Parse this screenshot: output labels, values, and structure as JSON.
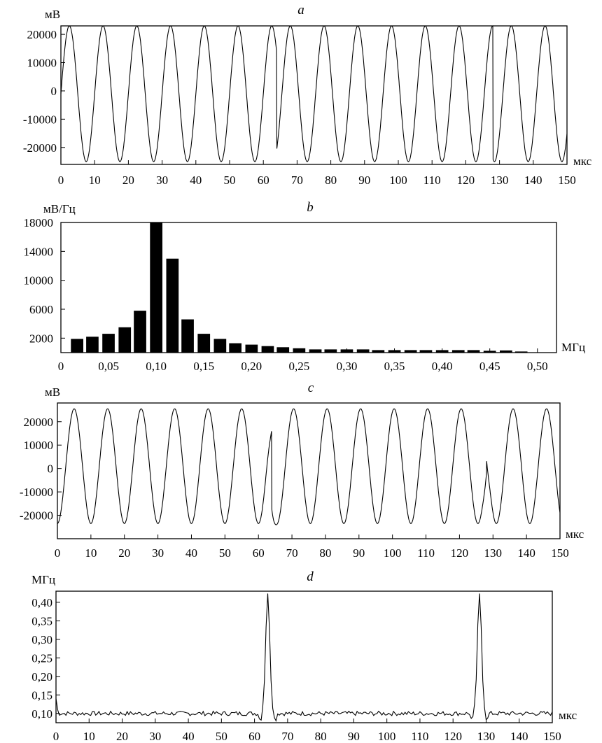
{
  "chart_data": [
    {
      "panel": "a",
      "type": "line",
      "ylabel": "мВ",
      "xlabel": "мкс",
      "xlim": [
        0,
        150
      ],
      "ylim": [
        -26000,
        23000
      ],
      "xticks": [
        0,
        10,
        20,
        30,
        40,
        50,
        60,
        70,
        80,
        90,
        100,
        110,
        120,
        130,
        140,
        150
      ],
      "yticks": [
        -20000,
        -10000,
        0,
        10000,
        20000
      ],
      "xtick_labels": [
        "0",
        "10",
        "20",
        "30",
        "40",
        "50",
        "60",
        "70",
        "80",
        "90",
        "100",
        "110",
        "120",
        "130",
        "140",
        "150"
      ],
      "ytick_labels": [
        "-20000",
        "-10000",
        "0",
        "10000",
        "20000"
      ],
      "grid": false,
      "signal": {
        "amplitude": 24000,
        "period": 10,
        "phase_jumps_at": [
          64,
          128
        ]
      }
    },
    {
      "panel": "b",
      "type": "bar",
      "ylabel": "мВ/Гц",
      "xlabel": "МГц",
      "xlim": [
        0,
        0.52
      ],
      "ylim": [
        0,
        18000
      ],
      "xticks": [
        0,
        0.05,
        0.1,
        0.15,
        0.2,
        0.25,
        0.3,
        0.35,
        0.4,
        0.45,
        0.5
      ],
      "xtick_labels": [
        "0",
        "0,05",
        "0,10",
        "0,15",
        "0,20",
        "0,25",
        "0,30",
        "0,35",
        "0,40",
        "0,45",
        "0,50"
      ],
      "yticks": [
        2000,
        6000,
        10000,
        14000,
        18000
      ],
      "ytick_labels": [
        "2000",
        "6000",
        "10000",
        "14000",
        "18000"
      ],
      "grid": false,
      "x": [
        0.017,
        0.033,
        0.05,
        0.067,
        0.083,
        0.1,
        0.117,
        0.133,
        0.15,
        0.167,
        0.183,
        0.2,
        0.217,
        0.233,
        0.25,
        0.267,
        0.283,
        0.3,
        0.317,
        0.333,
        0.35,
        0.367,
        0.383,
        0.4,
        0.417,
        0.433,
        0.45,
        0.467,
        0.483
      ],
      "values": [
        1900,
        2200,
        2600,
        3500,
        5800,
        18000,
        13000,
        4600,
        2600,
        1900,
        1300,
        1100,
        900,
        750,
        600,
        450,
        450,
        450,
        450,
        350,
        350,
        350,
        350,
        350,
        350,
        350,
        250,
        300,
        150
      ]
    },
    {
      "panel": "c",
      "type": "line",
      "ylabel": "мВ",
      "xlabel": "мкс",
      "xlim": [
        0,
        150
      ],
      "ylim": [
        -30000,
        28000
      ],
      "xticks": [
        0,
        10,
        20,
        30,
        40,
        50,
        60,
        70,
        80,
        90,
        100,
        110,
        120,
        130,
        140,
        150
      ],
      "yticks": [
        -20000,
        -10000,
        0,
        10000,
        20000
      ],
      "xtick_labels": [
        "0",
        "10",
        "20",
        "30",
        "40",
        "50",
        "60",
        "70",
        "80",
        "90",
        "100",
        "110",
        "120",
        "130",
        "140",
        "150"
      ],
      "ytick_labels": [
        "-20000",
        "-10000",
        "0",
        "10000",
        "20000"
      ],
      "grid": false,
      "signal": {
        "amplitude": 24500,
        "period": 10,
        "offset": 1000,
        "phase_jumps_at": [
          64,
          128
        ]
      }
    },
    {
      "panel": "d",
      "type": "line",
      "ylabel": "МГц",
      "xlabel": "мкс",
      "xlim": [
        0,
        150
      ],
      "ylim": [
        0.075,
        0.43
      ],
      "xticks": [
        0,
        10,
        20,
        30,
        40,
        50,
        60,
        70,
        80,
        90,
        100,
        110,
        120,
        130,
        140,
        150
      ],
      "xtick_labels": [
        "0",
        "10",
        "20",
        "30",
        "40",
        "50",
        "60",
        "70",
        "80",
        "90",
        "100",
        "110",
        "120",
        "130",
        "140",
        "150"
      ],
      "yticks": [
        0.1,
        0.15,
        0.2,
        0.25,
        0.3,
        0.35,
        0.4
      ],
      "ytick_labels": [
        "0,10",
        "0,15",
        "0,20",
        "0,25",
        "0,30",
        "0,35",
        "0,40"
      ],
      "grid": false,
      "signal": {
        "baseline": 0.1,
        "peaks": [
          {
            "x": 64,
            "y": 0.42
          },
          {
            "x": 128,
            "y": 0.42
          }
        ]
      }
    }
  ]
}
